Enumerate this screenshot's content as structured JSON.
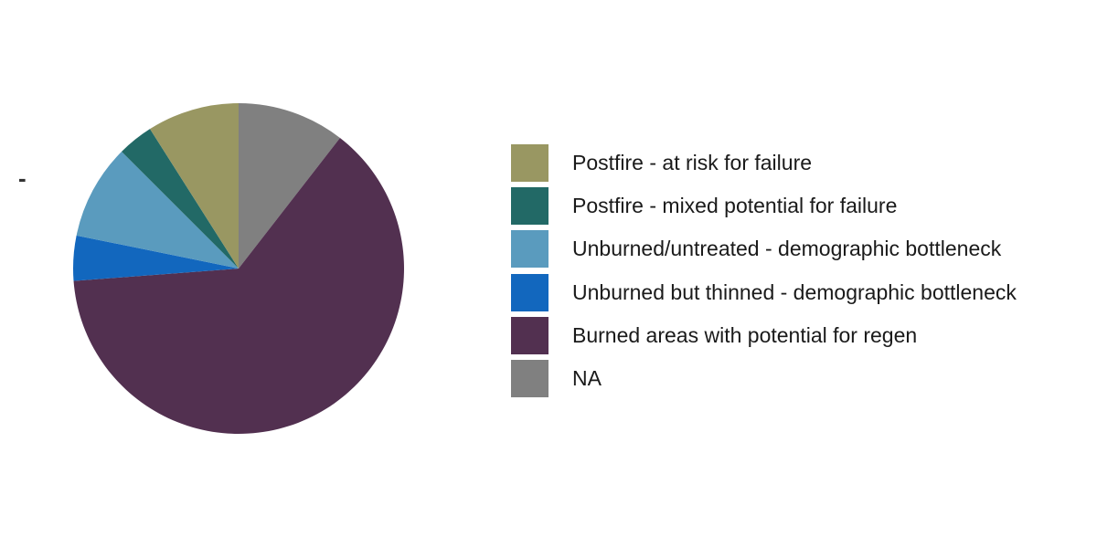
{
  "chart_data": {
    "type": "pie",
    "axis_tick_label": "-",
    "legend_position": "right",
    "start_angle_deg": 0,
    "direction": "clockwise",
    "slices": [
      {
        "label": "NA",
        "value": 10.5,
        "color": "#808080"
      },
      {
        "label": "Burned areas with potential for regen",
        "value": 63.3,
        "color": "#523050"
      },
      {
        "label": "Unburned but thinned - demographic bottleneck",
        "value": 4.4,
        "color": "#1267BE"
      },
      {
        "label": "Unburned/untreated - demographic bottleneck",
        "value": 9.3,
        "color": "#5A9BBE"
      },
      {
        "label": "Postfire - mixed potential for failure",
        "value": 3.5,
        "color": "#226966"
      },
      {
        "label": "Postfire - at risk for failure",
        "value": 9.0,
        "color": "#999762"
      }
    ],
    "legend": [
      {
        "label": "Postfire - at risk for failure",
        "color": "#999762"
      },
      {
        "label": "Postfire - mixed potential for failure",
        "color": "#226966"
      },
      {
        "label": "Unburned/untreated - demographic bottleneck",
        "color": "#5A9BBE"
      },
      {
        "label": "Unburned but thinned - demographic bottleneck",
        "color": "#1267BE"
      },
      {
        "label": "Burned areas with potential for regen",
        "color": "#523050"
      },
      {
        "label": "NA",
        "color": "#808080"
      }
    ]
  }
}
